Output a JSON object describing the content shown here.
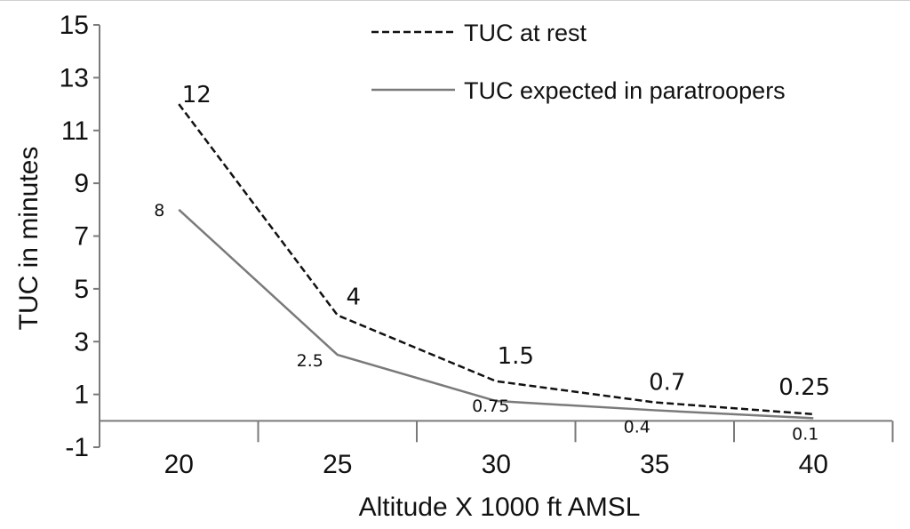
{
  "chart_data": {
    "type": "line",
    "xlabel": "Altitude X 1000 ft AMSL",
    "ylabel": "TUC in minutes",
    "x": [
      20,
      25,
      30,
      35,
      40
    ],
    "x_tick_labels": [
      "20",
      "25",
      "30",
      "35",
      "40"
    ],
    "ylim": [
      -1,
      15
    ],
    "y_ticks": [
      -1,
      1,
      3,
      5,
      7,
      9,
      11,
      13,
      15
    ],
    "y_tick_labels": [
      "-1",
      "1",
      "3",
      "5",
      "7",
      "9",
      "11",
      "13",
      "15"
    ],
    "grid": false,
    "legend_position": "top-right",
    "series": [
      {
        "name": "TUC at rest",
        "style": "dashed",
        "color": "#111111",
        "values": [
          12,
          4,
          1.5,
          0.7,
          0.25
        ],
        "data_labels": [
          "12",
          "4",
          "1.5",
          "0.7",
          "0.25"
        ]
      },
      {
        "name": "TUC expected in paratroopers",
        "style": "solid",
        "color": "#7a7a7a",
        "values": [
          8,
          2.5,
          0.75,
          0.4,
          0.1
        ],
        "data_labels": [
          "8",
          "2.5",
          "0.75",
          "0.4",
          "0.1"
        ]
      }
    ]
  }
}
